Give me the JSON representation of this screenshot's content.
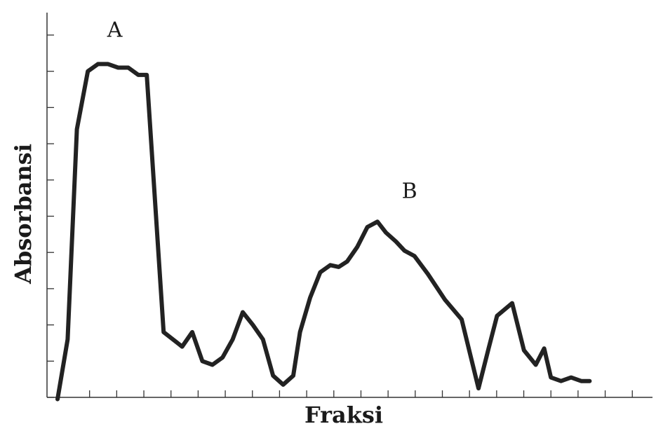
{
  "chart_data": {
    "type": "line",
    "title": "",
    "xlabel": "Fraksi",
    "ylabel": "Absorbansi",
    "xlim": [
      0,
      35
    ],
    "ylim": [
      0,
      10
    ],
    "ytick_count": 10,
    "xtick_count": 20,
    "grid": false,
    "line_color": "#222222",
    "series": [
      {
        "x": [
          0.0,
          0.6,
          1.15,
          1.8,
          2.4,
          3.0,
          3.6,
          4.2,
          4.8,
          5.3,
          6.3,
          7.4,
          8.0,
          8.6,
          9.2,
          9.8,
          10.4,
          11.0,
          11.6,
          12.2,
          12.8,
          13.4,
          14.0,
          14.4,
          15.0,
          15.6,
          16.2,
          16.7,
          17.2,
          17.8,
          18.4,
          19.0,
          19.5,
          20.1,
          20.6,
          21.2,
          22.0,
          23.0,
          24.0,
          25.0,
          25.6,
          26.1,
          27.0,
          27.7,
          28.4,
          28.9,
          29.3,
          29.9,
          30.5,
          31.1,
          31.6
        ],
        "y": [
          -0.05,
          1.6,
          7.4,
          9.0,
          9.2,
          9.2,
          9.1,
          9.1,
          8.9,
          8.9,
          1.8,
          1.4,
          1.8,
          1.0,
          0.9,
          1.1,
          1.6,
          2.35,
          2.0,
          1.6,
          0.6,
          0.35,
          0.6,
          1.8,
          2.75,
          3.45,
          3.65,
          3.6,
          3.75,
          4.15,
          4.7,
          4.85,
          4.55,
          4.3,
          4.05,
          3.9,
          3.4,
          2.7,
          2.15,
          0.25,
          1.35,
          2.25,
          2.6,
          1.3,
          0.9,
          1.35,
          0.55,
          0.45,
          0.55,
          0.45,
          0.45
        ]
      }
    ],
    "annotations": [
      {
        "text": "A",
        "x": 3.4,
        "y": 9.95
      },
      {
        "text": "B",
        "x": 20.9,
        "y": 5.5
      }
    ]
  }
}
